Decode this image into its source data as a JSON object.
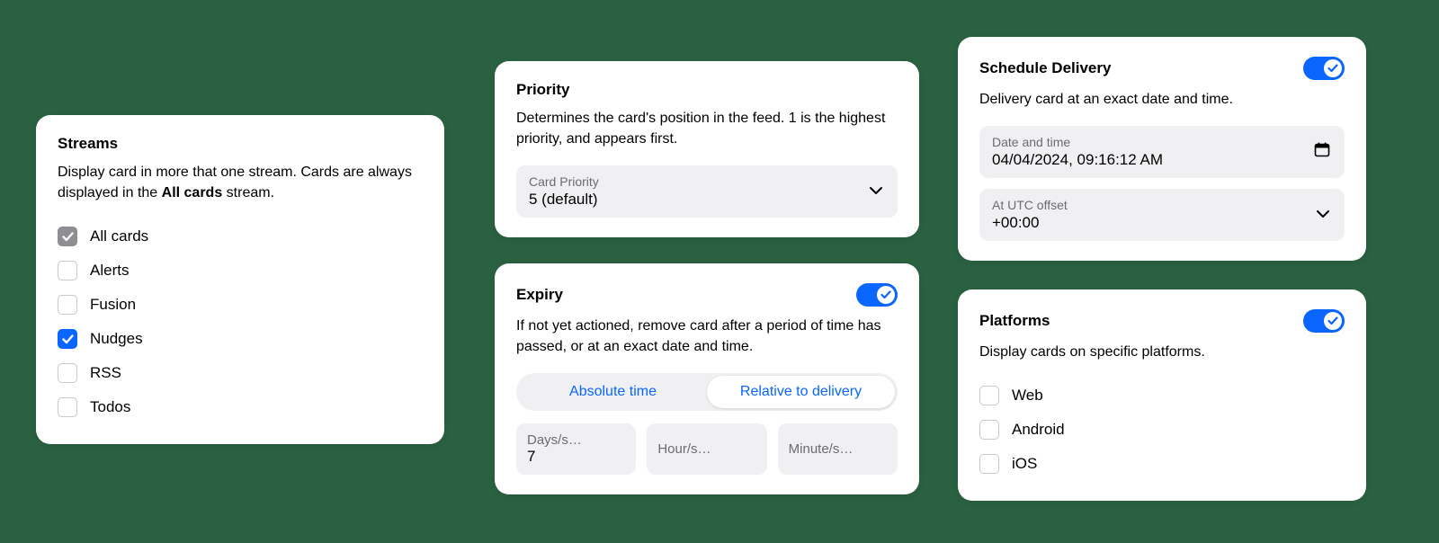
{
  "colors": {
    "background": "#2a6141",
    "card_bg": "#ffffff",
    "accent": "#0a66ff",
    "field_bg": "#f0f0f3",
    "muted_text": "#6b6b70",
    "locked_checkbox": "#8e8e93",
    "checkbox_border": "#c8c8cc"
  },
  "streams": {
    "title": "Streams",
    "desc_prefix": "Display card in more that one stream. Cards are always displayed in the ",
    "desc_bold": "All cards",
    "desc_suffix": " stream.",
    "items": [
      {
        "label": "All cards",
        "state": "locked"
      },
      {
        "label": "Alerts",
        "state": "unchecked"
      },
      {
        "label": "Fusion",
        "state": "unchecked"
      },
      {
        "label": "Nudges",
        "state": "checked"
      },
      {
        "label": "RSS",
        "state": "unchecked"
      },
      {
        "label": "Todos",
        "state": "unchecked"
      }
    ]
  },
  "priority": {
    "title": "Priority",
    "desc": "Determines the card's position in the feed. 1 is the highest priority, and appears first.",
    "field_label": "Card Priority",
    "field_value": "5 (default)"
  },
  "expiry": {
    "title": "Expiry",
    "enabled": true,
    "desc": "If not yet actioned, remove card after a period of time has passed, or at an exact date and time.",
    "segments": [
      "Absolute time",
      "Relative to delivery"
    ],
    "active_segment": 1,
    "days_label": "Days/s…",
    "days_value": "7",
    "hours_placeholder": "Hour/s…",
    "minutes_placeholder": "Minute/s…"
  },
  "schedule": {
    "title": "Schedule Delivery",
    "enabled": true,
    "desc": "Delivery card at an exact date and time.",
    "date_label": "Date and time",
    "date_value": "04/04/2024, 09:16:12  AM",
    "utc_label": "At UTC offset",
    "utc_value": "+00:00"
  },
  "platforms": {
    "title": "Platforms",
    "enabled": true,
    "desc": "Display cards on specific platforms.",
    "items": [
      {
        "label": "Web",
        "state": "unchecked"
      },
      {
        "label": "Android",
        "state": "unchecked"
      },
      {
        "label": "iOS",
        "state": "unchecked"
      }
    ]
  }
}
